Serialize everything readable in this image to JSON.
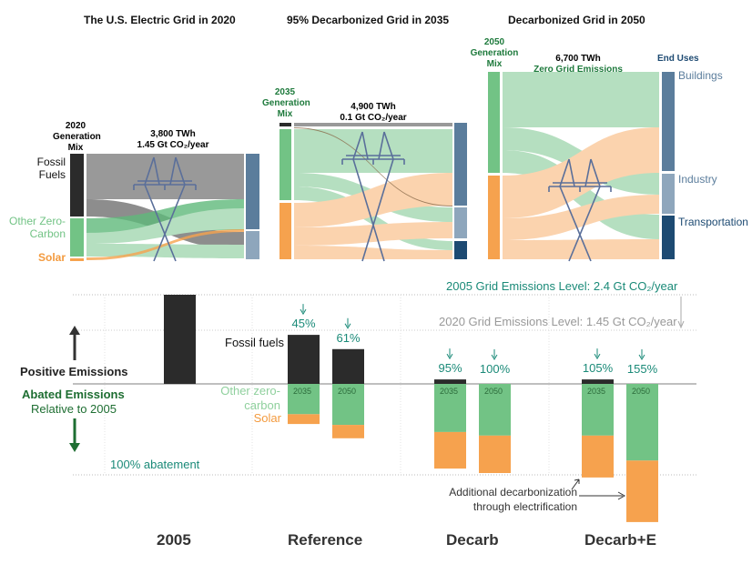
{
  "colors": {
    "fossil": "#2b2b2b",
    "other_zero_carbon": "#72c385",
    "solar": "#f6a24e",
    "buildings": "#5b7d9c",
    "industry": "#8ea6bc",
    "transportation": "#1d4a72",
    "teal": "#1a8a78"
  },
  "sankeys": [
    {
      "title": "The U.S. Electric Grid in 2020",
      "mix_label": "2020 Generation Mix",
      "total": "3,800 TWh",
      "emissions": "1.45 Gt CO₂/year",
      "sources": [
        "Fossil Fuels",
        "Other Zero-Carbon",
        "Solar"
      ]
    },
    {
      "title": "95% Decarbonized Grid in 2035",
      "mix_label": "2035 Generation Mix",
      "total": "4,900 TWh",
      "emissions": "0.1 Gt CO₂/year"
    },
    {
      "title": "Decarbonized Grid in 2050",
      "mix_label": "2050 Generation Mix",
      "total": "6,700 TWh",
      "emissions": "Zero Grid Emissions",
      "end_uses_label": "End Uses",
      "end_uses": [
        "Buildings",
        "Industry",
        "Transportation"
      ]
    }
  ],
  "chart_data": {
    "type": "bar",
    "stacked": true,
    "unit": "% of 2005 grid emissions",
    "categories": [
      "2005",
      "Reference",
      "Decarb",
      "Decarb+E"
    ],
    "bars": [
      {
        "group": "2005",
        "year": "",
        "fossil": 100,
        "other_zero_carbon": 0,
        "solar": 0,
        "label": ""
      },
      {
        "group": "Reference",
        "year": "2035",
        "fossil": 55,
        "other_zero_carbon": 34,
        "solar": 11,
        "label": "45%"
      },
      {
        "group": "Reference",
        "year": "2050",
        "fossil": 39,
        "other_zero_carbon": 46,
        "solar": 15,
        "label": "61%"
      },
      {
        "group": "Decarb",
        "year": "2035",
        "fossil": 5,
        "other_zero_carbon": 54,
        "solar": 41,
        "label": "95%"
      },
      {
        "group": "Decarb",
        "year": "2050",
        "fossil": 0,
        "other_zero_carbon": 58,
        "solar": 42,
        "label": "100%"
      },
      {
        "group": "Decarb+E",
        "year": "2035",
        "fossil": 5,
        "other_zero_carbon": 58,
        "solar": 47,
        "label": "105%"
      },
      {
        "group": "Decarb+E",
        "year": "2050",
        "fossil": 0,
        "other_zero_carbon": 86,
        "solar": 69,
        "label": "155%"
      }
    ],
    "reference_lines": {
      "level_2005": "2005 Grid Emissions Level: 2.4 Gt CO₂/year",
      "level_2020": "2020 Grid Emissions Level: 1.45 Gt CO₂/year",
      "abatement_100": "100% abatement"
    },
    "legend": {
      "fossil": "Fossil fuels",
      "other": "Other zero-carbon",
      "solar": "Solar"
    },
    "axis": {
      "positive": "Positive Emissions",
      "abated": "Abated Emissions",
      "relative": "Relative to 2005"
    },
    "annotation": "Additional decarbonization through electrification"
  }
}
